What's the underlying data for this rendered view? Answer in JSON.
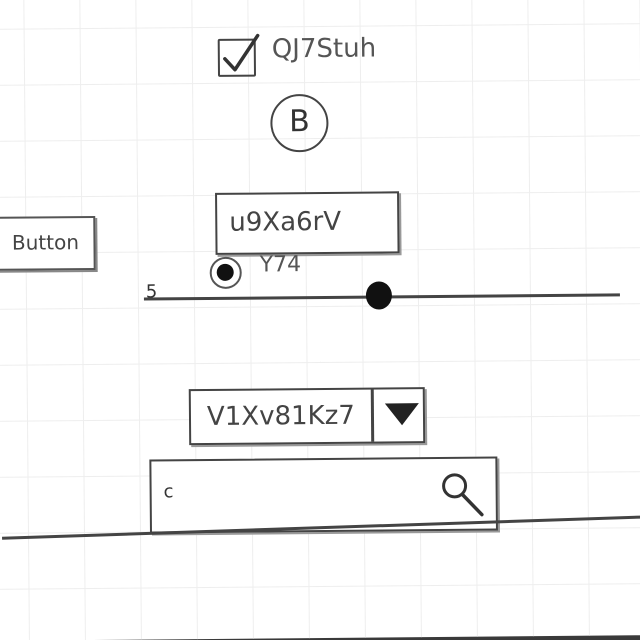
{
  "checkbox": {
    "label": "QJ7Stuh",
    "checked": true
  },
  "circle_button": {
    "label": "B"
  },
  "button": {
    "label": "Button"
  },
  "text_input": {
    "value": "u9Xa6rV"
  },
  "radio": {
    "label": "Y74",
    "selected": true
  },
  "slider": {
    "value": "5",
    "position": 0.47
  },
  "dropdown": {
    "selected": "V1Xv81Kz7",
    "icon": "triangle-down-icon"
  },
  "search": {
    "value": "c",
    "icon": "magnifier-icon"
  }
}
